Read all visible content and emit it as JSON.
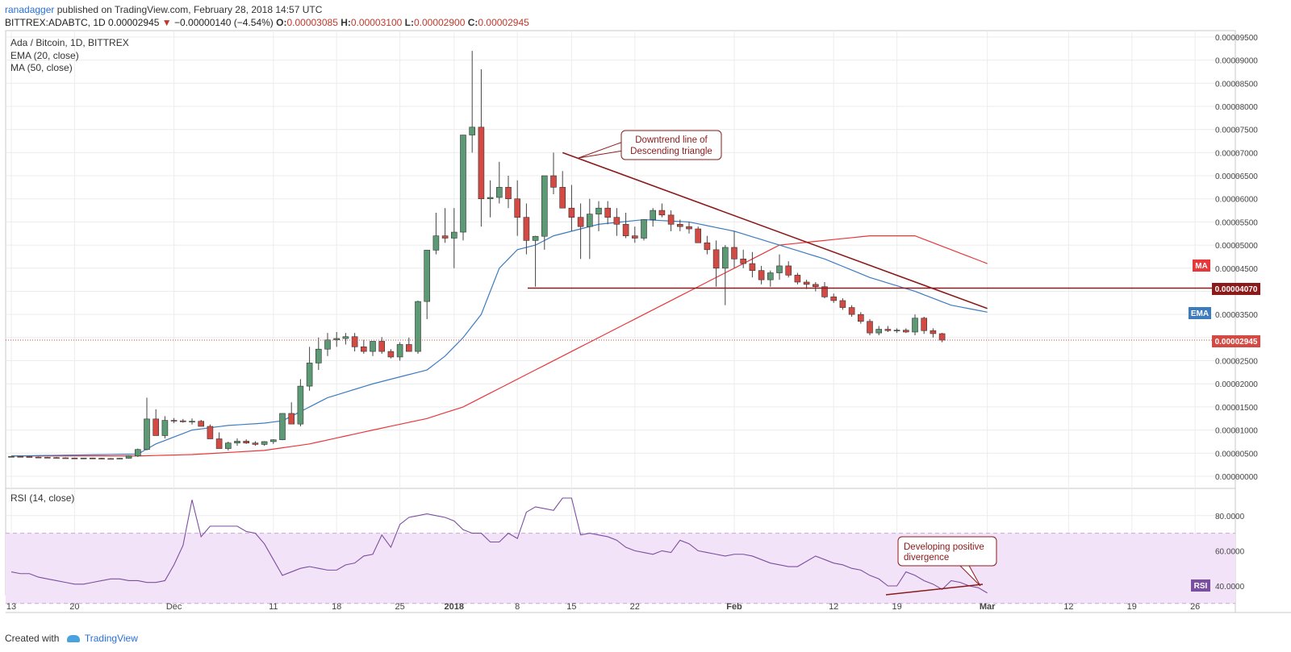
{
  "header": {
    "author": "ranadagger",
    "published_text": "published on TradingView.com, February 28, 2018 14:57 UTC",
    "symbol": "BITTREX:ADABTC, 1D",
    "last": "0.00002945",
    "arrow": "▼",
    "change": "−0.00000140 (−4.54%)",
    "o_label": "O:",
    "o_value": "0.00003085",
    "h_label": "H:",
    "h_value": "0.00003100",
    "l_label": "L:",
    "l_value": "0.00002900",
    "c_label": "C:",
    "c_value": "0.00002945"
  },
  "legend": {
    "title": "Ada / Bitcoin, 1D, BITTREX",
    "ema": "EMA (20, close)",
    "ma": "MA (50, close)",
    "rsi": "RSI (14, close)"
  },
  "annotations": {
    "downtrend_line1": "Downtrend line of",
    "downtrend_line2": "Descending triangle",
    "divergence_line1": "Developing positive",
    "divergence_line2": "divergence"
  },
  "badges": {
    "ma": "MA",
    "ema": "EMA",
    "rsi": "RSI",
    "support": "0.00004070",
    "last_price": "0.00002945"
  },
  "colors": {
    "bull": "#5b9a74",
    "bear": "#d24a43",
    "ema": "#3d7bbf",
    "ma": "#e8373b",
    "trendline": "#8b1a1a",
    "rsi": "#7b4fa0",
    "rsi_band": "#f3e3f9"
  },
  "footer": {
    "created_with": "Created with",
    "brand": "TradingView"
  },
  "chart_data": [
    {
      "type": "candlestick",
      "title": "Ada / Bitcoin, 1D, BITTREX",
      "price_axis": [
        "0.00009500",
        "0.00009000",
        "0.00008500",
        "0.00008000",
        "0.00007500",
        "0.00007000",
        "0.00006500",
        "0.00006000",
        "0.00005500",
        "0.00005000",
        "0.00004500",
        "0.00004000",
        "0.00003500",
        "0.00003000",
        "0.00002500",
        "0.00002000",
        "0.00001500",
        "0.00001000",
        "0.00000500",
        "0.00000000"
      ],
      "x_axis": [
        "13",
        "20",
        "Dec",
        "11",
        "18",
        "25",
        "2018",
        "8",
        "15",
        "22",
        "Feb",
        "12",
        "19",
        "Mar",
        "12",
        "19",
        "26"
      ],
      "ylim": [
        0,
        0.0001
      ],
      "candles_ohlc_x1e8": [
        [
          430,
          440,
          420,
          430
        ],
        [
          430,
          440,
          420,
          425
        ],
        [
          425,
          432,
          410,
          415
        ],
        [
          415,
          425,
          400,
          410
        ],
        [
          410,
          420,
          395,
          405
        ],
        [
          405,
          415,
          395,
          400
        ],
        [
          400,
          410,
          385,
          395
        ],
        [
          395,
          405,
          385,
          390
        ],
        [
          390,
          400,
          380,
          395
        ],
        [
          395,
          405,
          385,
          390
        ],
        [
          390,
          400,
          380,
          385
        ],
        [
          385,
          395,
          375,
          380
        ],
        [
          380,
          395,
          370,
          390
        ],
        [
          390,
          450,
          380,
          440
        ],
        [
          440,
          600,
          420,
          580
        ],
        [
          580,
          1700,
          560,
          1240
        ],
        [
          1240,
          1450,
          1000,
          880
        ],
        [
          880,
          1300,
          820,
          1210
        ],
        [
          1210,
          1260,
          1150,
          1200
        ],
        [
          1200,
          1240,
          1160,
          1180
        ],
        [
          1180,
          1250,
          1120,
          1190
        ],
        [
          1190,
          1220,
          1080,
          1080
        ],
        [
          1080,
          1120,
          900,
          810
        ],
        [
          810,
          950,
          690,
          600
        ],
        [
          600,
          750,
          560,
          720
        ],
        [
          720,
          820,
          660,
          760
        ],
        [
          760,
          800,
          700,
          720
        ],
        [
          720,
          760,
          660,
          690
        ],
        [
          690,
          760,
          660,
          750
        ],
        [
          750,
          800,
          700,
          790
        ],
        [
          790,
          1300,
          780,
          1360
        ],
        [
          1360,
          1600,
          1270,
          1130
        ],
        [
          1130,
          2100,
          1080,
          1950
        ],
        [
          1950,
          2800,
          1850,
          2450
        ],
        [
          2450,
          3000,
          2300,
          2750
        ],
        [
          2750,
          3100,
          2600,
          2950
        ],
        [
          2950,
          3120,
          2800,
          2980
        ],
        [
          2980,
          3100,
          2850,
          3020
        ],
        [
          3020,
          3100,
          2700,
          2800
        ],
        [
          2800,
          2950,
          2650,
          2700
        ],
        [
          2700,
          2900,
          2600,
          2920
        ],
        [
          2920,
          3010,
          2650,
          2700
        ],
        [
          2700,
          2750,
          2550,
          2580
        ],
        [
          2580,
          2900,
          2500,
          2850
        ],
        [
          2850,
          3000,
          2700,
          2700
        ],
        [
          2700,
          3800,
          2650,
          3780
        ],
        [
          3780,
          4800,
          3400,
          4890
        ],
        [
          4890,
          5700,
          4800,
          5200
        ],
        [
          5200,
          5800,
          5050,
          5150
        ],
        [
          5150,
          5800,
          4500,
          5280
        ],
        [
          5280,
          6800,
          5100,
          7380
        ],
        [
          7380,
          9200,
          7000,
          7550
        ],
        [
          7550,
          8800,
          5400,
          6000
        ],
        [
          6000,
          6400,
          5600,
          6030
        ],
        [
          6030,
          6800,
          5900,
          6250
        ],
        [
          6250,
          6500,
          5800,
          6000
        ],
        [
          6000,
          6400,
          5200,
          5600
        ],
        [
          5600,
          5900,
          4800,
          5100
        ],
        [
          5100,
          5200,
          4100,
          5190
        ],
        [
          5190,
          6500,
          4900,
          6500
        ],
        [
          6500,
          7000,
          6100,
          6250
        ],
        [
          6250,
          6600,
          5800,
          5800
        ],
        [
          5800,
          6300,
          5300,
          5600
        ],
        [
          5600,
          5900,
          4700,
          5400
        ],
        [
          5400,
          6000,
          4700,
          5670
        ],
        [
          5670,
          5950,
          5300,
          5800
        ],
        [
          5800,
          5950,
          5450,
          5600
        ],
        [
          5600,
          5800,
          5200,
          5450
        ],
        [
          5450,
          5700,
          5150,
          5200
        ],
        [
          5200,
          5400,
          5050,
          5150
        ],
        [
          5150,
          5500,
          5100,
          5550
        ],
        [
          5550,
          5800,
          5400,
          5750
        ],
        [
          5750,
          5900,
          5600,
          5650
        ],
        [
          5650,
          5750,
          5300,
          5450
        ],
        [
          5450,
          5550,
          5300,
          5400
        ],
        [
          5400,
          5500,
          5250,
          5350
        ],
        [
          5350,
          5400,
          5050,
          5050
        ],
        [
          5050,
          5200,
          4800,
          4900
        ],
        [
          4900,
          5100,
          4100,
          4500
        ],
        [
          4500,
          5000,
          3700,
          4950
        ],
        [
          4950,
          5300,
          4500,
          4700
        ],
        [
          4700,
          4900,
          4500,
          4600
        ],
        [
          4600,
          4850,
          4300,
          4450
        ],
        [
          4450,
          4550,
          4150,
          4250
        ],
        [
          4250,
          4450,
          4100,
          4400
        ],
        [
          4400,
          4800,
          4250,
          4550
        ],
        [
          4550,
          4650,
          4300,
          4350
        ],
        [
          4350,
          4400,
          4150,
          4200
        ],
        [
          4200,
          4250,
          4050,
          4150
        ],
        [
          4150,
          4200,
          4000,
          4100
        ],
        [
          4100,
          4200,
          3850,
          3880
        ],
        [
          3880,
          3950,
          3750,
          3800
        ],
        [
          3800,
          3850,
          3600,
          3650
        ],
        [
          3650,
          3700,
          3450,
          3500
        ],
        [
          3500,
          3550,
          3300,
          3350
        ],
        [
          3350,
          3400,
          3050,
          3100
        ],
        [
          3100,
          3250,
          3050,
          3180
        ],
        [
          3180,
          3250,
          3120,
          3150
        ],
        [
          3150,
          3200,
          3100,
          3160
        ],
        [
          3160,
          3200,
          3100,
          3120
        ],
        [
          3120,
          3500,
          3050,
          3420
        ],
        [
          3420,
          3450,
          3080,
          3150
        ],
        [
          3150,
          3200,
          3000,
          3085
        ],
        [
          3085,
          3100,
          2900,
          2945
        ]
      ],
      "ema_20_x1e8_anchors": [
        [
          0,
          440
        ],
        [
          14,
          480
        ],
        [
          16,
          700
        ],
        [
          20,
          1000
        ],
        [
          24,
          1100
        ],
        [
          28,
          1150
        ],
        [
          30,
          1200
        ],
        [
          33,
          1500
        ],
        [
          35,
          1700
        ],
        [
          40,
          2000
        ],
        [
          44,
          2200
        ],
        [
          46,
          2300
        ],
        [
          48,
          2600
        ],
        [
          50,
          3000
        ],
        [
          52,
          3500
        ],
        [
          54,
          4500
        ],
        [
          56,
          4900
        ],
        [
          58,
          5000
        ],
        [
          60,
          5200
        ],
        [
          65,
          5450
        ],
        [
          70,
          5550
        ],
        [
          75,
          5500
        ],
        [
          80,
          5300
        ],
        [
          85,
          5000
        ],
        [
          90,
          4700
        ],
        [
          95,
          4300
        ],
        [
          100,
          4000
        ],
        [
          104,
          3700
        ],
        [
          108,
          3550
        ]
      ],
      "ma_50_x1e8_anchors": [
        [
          0,
          440
        ],
        [
          14,
          440
        ],
        [
          20,
          470
        ],
        [
          28,
          560
        ],
        [
          33,
          700
        ],
        [
          40,
          1000
        ],
        [
          46,
          1250
        ],
        [
          50,
          1500
        ],
        [
          55,
          2000
        ],
        [
          60,
          2500
        ],
        [
          65,
          3000
        ],
        [
          70,
          3500
        ],
        [
          75,
          4000
        ],
        [
          80,
          4500
        ],
        [
          85,
          5000
        ],
        [
          90,
          5100
        ],
        [
          95,
          5200
        ],
        [
          100,
          5200
        ],
        [
          104,
          4900
        ],
        [
          108,
          4600
        ]
      ],
      "levels": {
        "support": 4.07e-05,
        "last_price": 2.945e-05
      },
      "trendline_downtrend": [
        [
          61,
          7e-05
        ],
        [
          108,
          3.63e-05
        ]
      ]
    },
    {
      "type": "line",
      "title": "RSI (14, close)",
      "ylabel_ticks": [
        "80.0000",
        "60.0000",
        "40.0000"
      ],
      "ylim": [
        25,
        95
      ],
      "band": [
        30,
        70
      ],
      "x": [
        0,
        1,
        2,
        3,
        4,
        5,
        6,
        7,
        8,
        9,
        10,
        11,
        12,
        13,
        14,
        15,
        16,
        17,
        18,
        19,
        20,
        21,
        22,
        23,
        24,
        25,
        26,
        27,
        28,
        29,
        30,
        31,
        32,
        33,
        34,
        35,
        36,
        37,
        38,
        39,
        40,
        41,
        42,
        43,
        44,
        45,
        46,
        47,
        48,
        49,
        50,
        51,
        52,
        53,
        54,
        55,
        56,
        57,
        58,
        59,
        60,
        61,
        62,
        63,
        64,
        65,
        66,
        67,
        68,
        69,
        70,
        71,
        72,
        73,
        74,
        75,
        76,
        77,
        78,
        79,
        80,
        81,
        82,
        83,
        84,
        85,
        86,
        87,
        88,
        89,
        90,
        91,
        92,
        93,
        94,
        95,
        96,
        97,
        98,
        99,
        100,
        101,
        102,
        103,
        104,
        105,
        106,
        107,
        108
      ],
      "values": [
        48,
        47,
        47,
        45,
        44,
        43,
        42,
        41,
        41,
        42,
        43,
        44,
        44,
        43,
        43,
        42,
        42,
        43,
        52,
        63,
        89,
        68,
        74,
        74,
        74,
        74,
        71,
        70,
        64,
        55,
        46,
        48,
        50,
        51,
        50,
        49,
        49,
        52,
        53,
        57,
        58,
        69,
        62,
        75,
        79,
        80,
        81,
        80,
        79,
        77,
        72,
        70,
        70,
        65,
        65,
        70,
        67,
        82,
        85,
        84,
        83,
        90,
        90,
        69,
        70,
        69,
        68,
        66,
        62,
        60,
        59,
        58,
        60,
        59,
        66,
        64,
        60,
        59,
        58,
        57,
        58,
        58,
        57,
        55,
        53,
        52,
        51,
        51,
        54,
        57,
        55,
        53,
        52,
        50,
        49,
        46,
        44,
        40,
        40,
        48,
        46,
        43,
        41,
        38,
        43,
        42,
        40,
        39,
        36
      ]
    }
  ]
}
